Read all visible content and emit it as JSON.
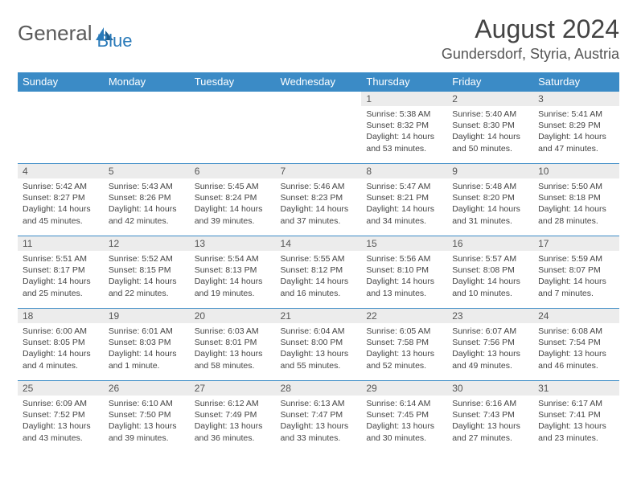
{
  "brand": {
    "part1": "General",
    "part2": "Blue"
  },
  "title": "August 2024",
  "location": "Gundersdorf, Styria, Austria",
  "colors": {
    "header_bg": "#3b8bc6",
    "header_text": "#ffffff",
    "daynum_bg": "#ececec",
    "cell_border": "#3b8bc6",
    "logo_gray": "#5a5a5a",
    "logo_blue": "#2a7ab9"
  },
  "dow": [
    "Sunday",
    "Monday",
    "Tuesday",
    "Wednesday",
    "Thursday",
    "Friday",
    "Saturday"
  ],
  "first_weekday_index": 4,
  "days": [
    {
      "n": 1,
      "sunrise": "5:38 AM",
      "sunset": "8:32 PM",
      "daylight": "14 hours and 53 minutes."
    },
    {
      "n": 2,
      "sunrise": "5:40 AM",
      "sunset": "8:30 PM",
      "daylight": "14 hours and 50 minutes."
    },
    {
      "n": 3,
      "sunrise": "5:41 AM",
      "sunset": "8:29 PM",
      "daylight": "14 hours and 47 minutes."
    },
    {
      "n": 4,
      "sunrise": "5:42 AM",
      "sunset": "8:27 PM",
      "daylight": "14 hours and 45 minutes."
    },
    {
      "n": 5,
      "sunrise": "5:43 AM",
      "sunset": "8:26 PM",
      "daylight": "14 hours and 42 minutes."
    },
    {
      "n": 6,
      "sunrise": "5:45 AM",
      "sunset": "8:24 PM",
      "daylight": "14 hours and 39 minutes."
    },
    {
      "n": 7,
      "sunrise": "5:46 AM",
      "sunset": "8:23 PM",
      "daylight": "14 hours and 37 minutes."
    },
    {
      "n": 8,
      "sunrise": "5:47 AM",
      "sunset": "8:21 PM",
      "daylight": "14 hours and 34 minutes."
    },
    {
      "n": 9,
      "sunrise": "5:48 AM",
      "sunset": "8:20 PM",
      "daylight": "14 hours and 31 minutes."
    },
    {
      "n": 10,
      "sunrise": "5:50 AM",
      "sunset": "8:18 PM",
      "daylight": "14 hours and 28 minutes."
    },
    {
      "n": 11,
      "sunrise": "5:51 AM",
      "sunset": "8:17 PM",
      "daylight": "14 hours and 25 minutes."
    },
    {
      "n": 12,
      "sunrise": "5:52 AM",
      "sunset": "8:15 PM",
      "daylight": "14 hours and 22 minutes."
    },
    {
      "n": 13,
      "sunrise": "5:54 AM",
      "sunset": "8:13 PM",
      "daylight": "14 hours and 19 minutes."
    },
    {
      "n": 14,
      "sunrise": "5:55 AM",
      "sunset": "8:12 PM",
      "daylight": "14 hours and 16 minutes."
    },
    {
      "n": 15,
      "sunrise": "5:56 AM",
      "sunset": "8:10 PM",
      "daylight": "14 hours and 13 minutes."
    },
    {
      "n": 16,
      "sunrise": "5:57 AM",
      "sunset": "8:08 PM",
      "daylight": "14 hours and 10 minutes."
    },
    {
      "n": 17,
      "sunrise": "5:59 AM",
      "sunset": "8:07 PM",
      "daylight": "14 hours and 7 minutes."
    },
    {
      "n": 18,
      "sunrise": "6:00 AM",
      "sunset": "8:05 PM",
      "daylight": "14 hours and 4 minutes."
    },
    {
      "n": 19,
      "sunrise": "6:01 AM",
      "sunset": "8:03 PM",
      "daylight": "14 hours and 1 minute."
    },
    {
      "n": 20,
      "sunrise": "6:03 AM",
      "sunset": "8:01 PM",
      "daylight": "13 hours and 58 minutes."
    },
    {
      "n": 21,
      "sunrise": "6:04 AM",
      "sunset": "8:00 PM",
      "daylight": "13 hours and 55 minutes."
    },
    {
      "n": 22,
      "sunrise": "6:05 AM",
      "sunset": "7:58 PM",
      "daylight": "13 hours and 52 minutes."
    },
    {
      "n": 23,
      "sunrise": "6:07 AM",
      "sunset": "7:56 PM",
      "daylight": "13 hours and 49 minutes."
    },
    {
      "n": 24,
      "sunrise": "6:08 AM",
      "sunset": "7:54 PM",
      "daylight": "13 hours and 46 minutes."
    },
    {
      "n": 25,
      "sunrise": "6:09 AM",
      "sunset": "7:52 PM",
      "daylight": "13 hours and 43 minutes."
    },
    {
      "n": 26,
      "sunrise": "6:10 AM",
      "sunset": "7:50 PM",
      "daylight": "13 hours and 39 minutes."
    },
    {
      "n": 27,
      "sunrise": "6:12 AM",
      "sunset": "7:49 PM",
      "daylight": "13 hours and 36 minutes."
    },
    {
      "n": 28,
      "sunrise": "6:13 AM",
      "sunset": "7:47 PM",
      "daylight": "13 hours and 33 minutes."
    },
    {
      "n": 29,
      "sunrise": "6:14 AM",
      "sunset": "7:45 PM",
      "daylight": "13 hours and 30 minutes."
    },
    {
      "n": 30,
      "sunrise": "6:16 AM",
      "sunset": "7:43 PM",
      "daylight": "13 hours and 27 minutes."
    },
    {
      "n": 31,
      "sunrise": "6:17 AM",
      "sunset": "7:41 PM",
      "daylight": "13 hours and 23 minutes."
    }
  ]
}
